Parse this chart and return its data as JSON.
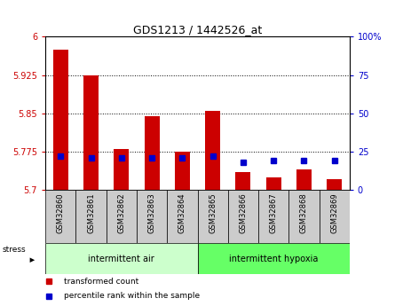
{
  "title": "GDS1213 / 1442526_at",
  "samples": [
    "GSM32860",
    "GSM32861",
    "GSM32862",
    "GSM32863",
    "GSM32864",
    "GSM32865",
    "GSM32866",
    "GSM32867",
    "GSM32868",
    "GSM32869"
  ],
  "red_values": [
    5.975,
    5.925,
    5.78,
    5.845,
    5.775,
    5.855,
    5.735,
    5.725,
    5.74,
    5.72
  ],
  "blue_values": [
    22,
    21,
    21,
    21,
    21,
    22,
    18,
    19,
    19,
    19
  ],
  "ymin": 5.7,
  "ymax": 6.0,
  "y_ticks": [
    5.7,
    5.775,
    5.85,
    5.925,
    6.0
  ],
  "y_ticklabels": [
    "5.7",
    "5.775",
    "5.85",
    "5.925",
    "6"
  ],
  "y2_ticks": [
    0,
    25,
    50,
    75,
    100
  ],
  "y2_ticklabels": [
    "0",
    "25",
    "50",
    "75",
    "100%"
  ],
  "group1_label": "intermittent air",
  "group2_label": "intermittent hypoxia",
  "group1_indices": [
    0,
    1,
    2,
    3,
    4
  ],
  "group2_indices": [
    5,
    6,
    7,
    8,
    9
  ],
  "stress_label": "stress",
  "legend1_label": "transformed count",
  "legend2_label": "percentile rank within the sample",
  "red_color": "#cc0000",
  "blue_color": "#0000cc",
  "bar_width": 0.5,
  "group1_bg": "#ccffcc",
  "group2_bg": "#66ff66",
  "tick_area_bg": "#cccccc",
  "plot_bg": "#ffffff"
}
